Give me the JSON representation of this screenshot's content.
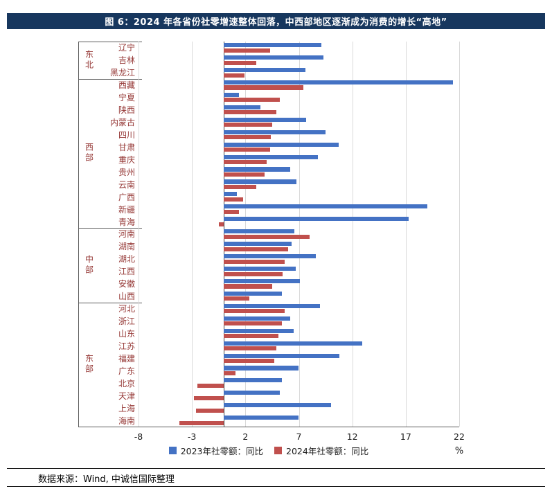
{
  "header": {
    "title": "图 6：2024 年各省份社零增速整体回落，中西部地区逐渐成为消费的增长“高地”"
  },
  "chart_data": {
    "type": "bar",
    "orientation": "horizontal",
    "title": "2024 年各省份社零增速整体回落，中西部地区逐渐成为消费的增长“高地”",
    "xlabel": "",
    "ylabel": "",
    "x_unit": "%",
    "xlim": [
      -8,
      22
    ],
    "xticks": [
      -8,
      -3,
      2,
      7,
      12,
      17,
      22
    ],
    "grid": "vertical",
    "legend_position": "bottom",
    "series": [
      {
        "name": "2023年社零额：同比",
        "key": "v2023",
        "color": "#4472C4"
      },
      {
        "name": "2024年社零额：同比",
        "key": "v2024",
        "color": "#C0504D"
      }
    ],
    "groups": [
      {
        "name": "东北",
        "provinces": [
          {
            "label": "辽宁",
            "v2023": 9.1,
            "v2024": 4.3
          },
          {
            "label": "吉林",
            "v2023": 9.3,
            "v2024": 3.0
          },
          {
            "label": "黑龙江",
            "v2023": 7.6,
            "v2024": 1.9
          }
        ]
      },
      {
        "name": "西部",
        "provinces": [
          {
            "label": "西藏",
            "v2023": 21.4,
            "v2024": 7.4
          },
          {
            "label": "宁夏",
            "v2023": 1.4,
            "v2024": 5.2
          },
          {
            "label": "陕西",
            "v2023": 3.4,
            "v2024": 4.9
          },
          {
            "label": "内蒙古",
            "v2023": 7.7,
            "v2024": 4.5
          },
          {
            "label": "四川",
            "v2023": 9.5,
            "v2024": 4.4
          },
          {
            "label": "甘肃",
            "v2023": 10.7,
            "v2024": 4.3
          },
          {
            "label": "重庆",
            "v2023": 8.8,
            "v2024": 4.0
          },
          {
            "label": "贵州",
            "v2023": 6.2,
            "v2024": 3.8
          },
          {
            "label": "云南",
            "v2023": 6.8,
            "v2024": 3.0
          },
          {
            "label": "广西",
            "v2023": 1.2,
            "v2024": 1.8
          },
          {
            "label": "新疆",
            "v2023": 19.0,
            "v2024": 1.4
          },
          {
            "label": "青海",
            "v2023": 17.3,
            "v2024": -0.5
          }
        ]
      },
      {
        "name": "中部",
        "provinces": [
          {
            "label": "河南",
            "v2023": 6.6,
            "v2024": 8.0
          },
          {
            "label": "湖南",
            "v2023": 6.3,
            "v2024": 6.0
          },
          {
            "label": "湖北",
            "v2023": 8.6,
            "v2024": 5.7
          },
          {
            "label": "江西",
            "v2023": 6.7,
            "v2024": 5.5
          },
          {
            "label": "安徽",
            "v2023": 7.1,
            "v2024": 4.5
          },
          {
            "label": "山西",
            "v2023": 5.4,
            "v2024": 2.4
          }
        ]
      },
      {
        "name": "东部",
        "provinces": [
          {
            "label": "河北",
            "v2023": 9.0,
            "v2024": 5.7
          },
          {
            "label": "浙江",
            "v2023": 6.2,
            "v2024": 5.4
          },
          {
            "label": "山东",
            "v2023": 6.5,
            "v2024": 5.1
          },
          {
            "label": "江苏",
            "v2023": 12.9,
            "v2024": 4.9
          },
          {
            "label": "福建",
            "v2023": 10.8,
            "v2024": 4.7
          },
          {
            "label": "广东",
            "v2023": 7.0,
            "v2024": 1.1
          },
          {
            "label": "北京",
            "v2023": 5.4,
            "v2024": -2.5
          },
          {
            "label": "天津",
            "v2023": 5.2,
            "v2024": -2.8
          },
          {
            "label": "上海",
            "v2023": 10.0,
            "v2024": -2.6
          },
          {
            "label": "海南",
            "v2023": 7.0,
            "v2024": -4.2
          }
        ]
      }
    ]
  },
  "footer": {
    "source": "数据来源：Wind, 中诚信国际整理"
  }
}
